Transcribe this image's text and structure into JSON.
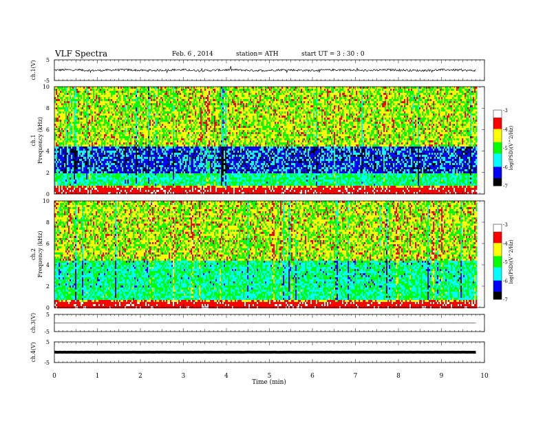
{
  "header": {
    "title": "VLF  Spectra",
    "date": "Feb. 6  , 2014",
    "station": "station= ATH",
    "start": "start  UT  =   3  : 30 : 0"
  },
  "chart_data": [
    {
      "type": "line",
      "ylabel": "ch.1(V)",
      "ylim": [
        -5,
        5
      ],
      "yticks": [
        "5",
        "-5"
      ],
      "xlim": [
        0,
        10
      ],
      "trace": "noisy waveform near 0 V, amplitude about ±1 V",
      "color": "#000000"
    },
    {
      "type": "heatmap",
      "ylabel_lines": [
        "ch.1",
        "Frequency  (kHz)"
      ],
      "ylim": [
        0,
        10
      ],
      "yticks": [
        "0",
        "2",
        "4",
        "6",
        "8",
        "10"
      ],
      "xlim": [
        0,
        10
      ],
      "data_end_min": 9.8,
      "colorbar": {
        "label": "log(PSD)(V^2/Hz)",
        "range": [
          -7,
          -3
        ],
        "ticks": [
          "-3",
          "-4",
          "-5",
          "-6",
          "-7"
        ]
      }
    },
    {
      "type": "heatmap",
      "ylabel_lines": [
        "ch.2",
        "Frequency  (kHz)"
      ],
      "ylim": [
        0,
        10
      ],
      "yticks": [
        "0",
        "2",
        "4",
        "6",
        "8",
        "10"
      ],
      "xlim": [
        0,
        10
      ],
      "data_end_min": 9.8,
      "colorbar": {
        "label": "log(PSD)(V^2/Hz)",
        "range": [
          -7,
          -3
        ],
        "ticks": [
          "-3",
          "-4",
          "-5",
          "-6",
          "-7"
        ]
      }
    },
    {
      "type": "line",
      "ylabel": "ch.3(V)",
      "ylim": [
        -5,
        5
      ],
      "yticks": [
        "5",
        "-5"
      ],
      "xlim": [
        0,
        10
      ],
      "trace": "flat line near 0 V",
      "color": "#000000"
    },
    {
      "type": "line",
      "ylabel": "ch.4(V)",
      "ylim": [
        -5,
        5
      ],
      "yticks": [
        "5",
        "-5"
      ],
      "xlim": [
        0,
        10
      ],
      "trace": "thick flat band near 0 V",
      "color": "#000000"
    }
  ],
  "xaxis": {
    "label": "Time  (min)",
    "ticks": [
      "0",
      "1",
      "2",
      "3",
      "4",
      "5",
      "6",
      "7",
      "8",
      "9",
      "10"
    ],
    "xlim": [
      0,
      10
    ]
  },
  "colormap": [
    "#ffffff",
    "#ff0000",
    "#ffff00",
    "#00ff00",
    "#00ffff",
    "#0000ff",
    "#000000"
  ]
}
